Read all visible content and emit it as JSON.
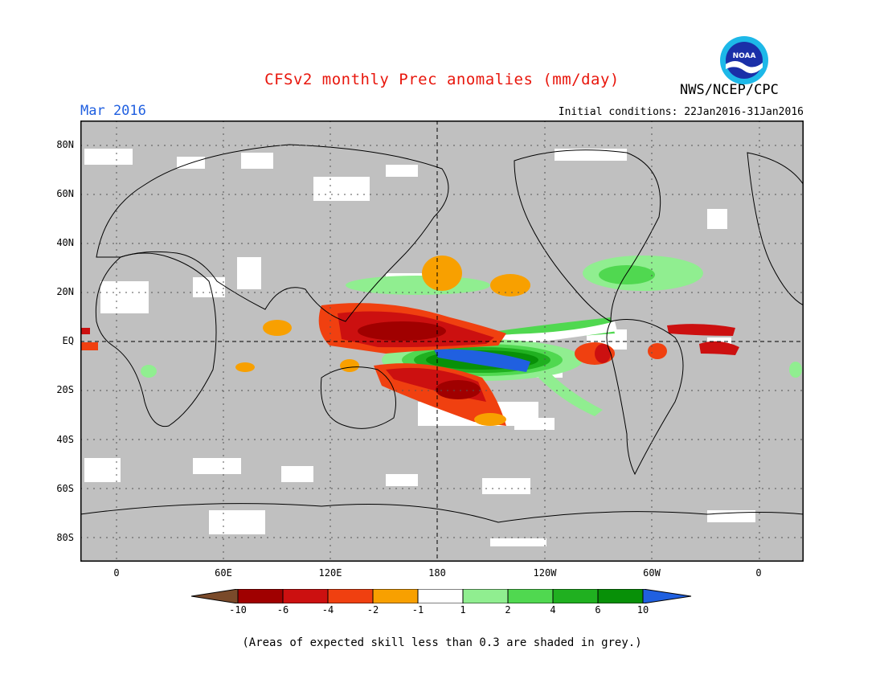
{
  "header": {
    "title": "CFSv2 monthly Prec anomalies (mm/day)",
    "agency": "NWS/NCEP/CPC",
    "logo_text": "NOAA",
    "month": "Mar 2016",
    "initial_conditions": "Initial conditions: 22Jan2016-31Jan2016"
  },
  "map": {
    "lat_labels": [
      "80N",
      "60N",
      "40N",
      "20N",
      "EQ",
      "20S",
      "40S",
      "60S",
      "80S"
    ],
    "lon_labels": [
      "0",
      "60E",
      "120E",
      "180",
      "120W",
      "60W",
      "0"
    ],
    "background_color": "#c0c0c0"
  },
  "colorbar": {
    "labels": [
      "-10",
      "-6",
      "-4",
      "-2",
      "-1",
      "1",
      "2",
      "4",
      "6",
      "10"
    ],
    "colors": [
      "#7a4a2a",
      "#a00000",
      "#cc1010",
      "#f04010",
      "#f8a000",
      "#ffffff",
      "#90ee90",
      "#50d850",
      "#20b020",
      "#089008",
      "#2060e0"
    ]
  },
  "footnote": "(Areas of expected skill less than 0.3 are shaded in grey.)"
}
